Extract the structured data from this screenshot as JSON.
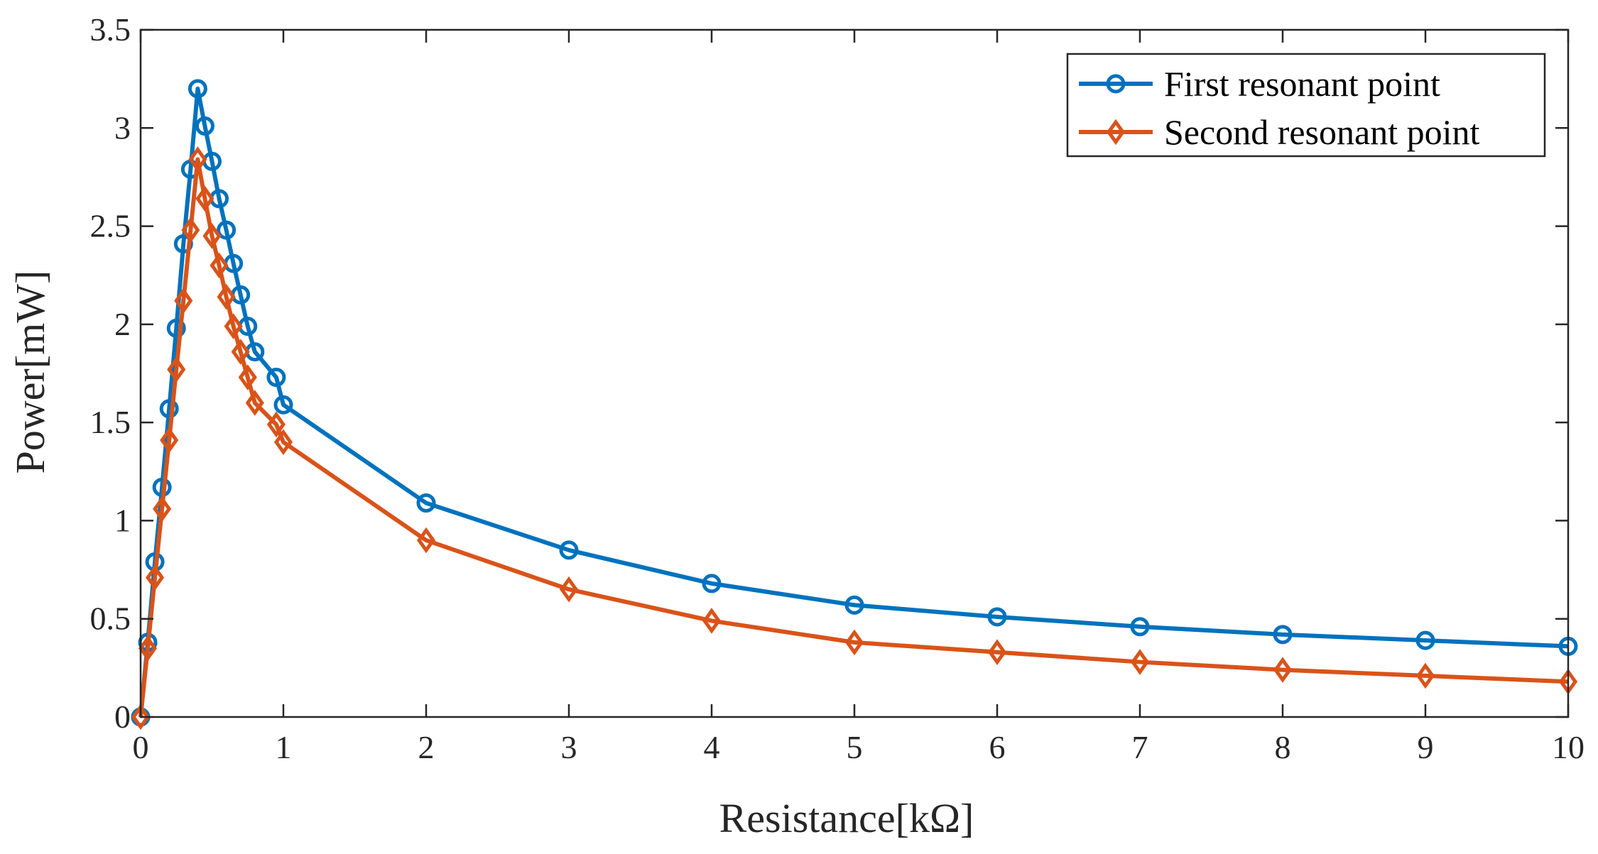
{
  "chart_data": {
    "type": "line",
    "title": "",
    "xlabel": "Resistance[kΩ]",
    "ylabel": "Power[mW]",
    "xlim": [
      0,
      10
    ],
    "ylim": [
      0,
      3.5
    ],
    "xticks": [
      0,
      1,
      2,
      3,
      4,
      5,
      6,
      7,
      8,
      9,
      10
    ],
    "xtick_labels": [
      "0",
      "1",
      "2",
      "3",
      "4",
      "5",
      "6",
      "7",
      "8",
      "9",
      "10"
    ],
    "yticks": [
      0,
      0.5,
      1,
      1.5,
      2,
      2.5,
      3,
      3.5
    ],
    "ytick_labels": [
      "0",
      "0.5",
      "1",
      "1.5",
      "2",
      "2.5",
      "3",
      "3.5"
    ],
    "grid": false,
    "legend_position": "top-right",
    "series": [
      {
        "name": "First resonant point",
        "color": "#0072BD",
        "marker": "circle",
        "x": [
          0,
          0.05,
          0.1,
          0.15,
          0.2,
          0.25,
          0.3,
          0.35,
          0.4,
          0.45,
          0.5,
          0.55,
          0.6,
          0.65,
          0.7,
          0.75,
          0.8,
          0.95,
          1,
          2,
          3,
          4,
          5,
          6,
          7,
          8,
          9,
          10
        ],
        "y": [
          0,
          0.38,
          0.79,
          1.17,
          1.57,
          1.98,
          2.41,
          2.79,
          3.2,
          3.01,
          2.83,
          2.64,
          2.48,
          2.31,
          2.15,
          1.99,
          1.86,
          1.73,
          1.59,
          1.09,
          0.85,
          0.68,
          0.57,
          0.51,
          0.46,
          0.42,
          0.39,
          0.36
        ]
      },
      {
        "name": "Second resonant point",
        "color": "#D95319",
        "marker": "diamond",
        "x": [
          0,
          0.05,
          0.1,
          0.15,
          0.2,
          0.25,
          0.3,
          0.35,
          0.4,
          0.45,
          0.5,
          0.55,
          0.6,
          0.65,
          0.7,
          0.75,
          0.8,
          0.95,
          1,
          2,
          3,
          4,
          5,
          6,
          7,
          8,
          9,
          10
        ],
        "y": [
          0,
          0.35,
          0.71,
          1.06,
          1.41,
          1.77,
          2.12,
          2.48,
          2.84,
          2.64,
          2.45,
          2.3,
          2.14,
          1.99,
          1.86,
          1.73,
          1.6,
          1.49,
          1.4,
          0.9,
          0.65,
          0.49,
          0.38,
          0.33,
          0.28,
          0.24,
          0.21,
          0.18
        ]
      }
    ]
  }
}
